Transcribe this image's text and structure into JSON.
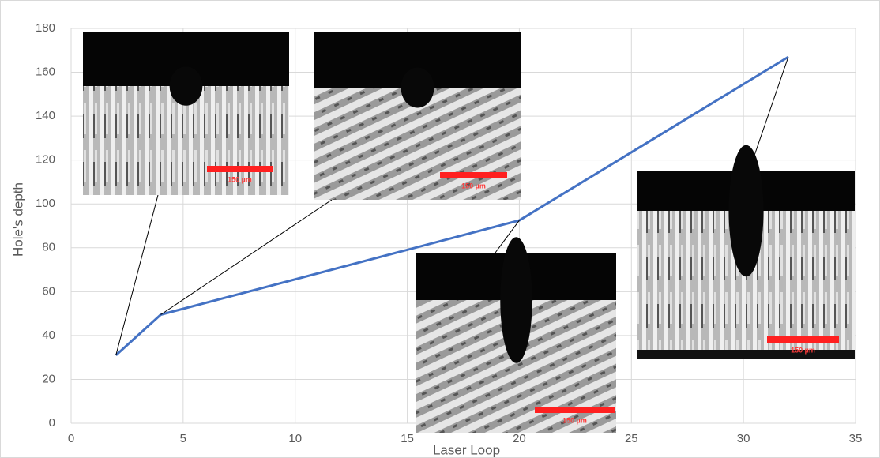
{
  "chart_data": {
    "type": "line",
    "x_label": "Laser Loop",
    "y_label": "Hole's depth",
    "x": [
      2,
      4,
      20,
      32
    ],
    "series": [
      {
        "name": "Hole's depth",
        "color": "#4472c4",
        "values": [
          31,
          49.5,
          92.5,
          167
        ]
      }
    ],
    "xlim": [
      0,
      35
    ],
    "xticks": [
      0,
      5,
      10,
      15,
      20,
      25,
      30,
      35
    ],
    "ylim": [
      0,
      180
    ],
    "yticks": [
      0,
      20,
      40,
      60,
      80,
      100,
      120,
      140,
      160,
      180
    ],
    "grid": true,
    "annotations": [
      "150 µm",
      "150 µm",
      "150 µm",
      "150 µm"
    ]
  }
}
